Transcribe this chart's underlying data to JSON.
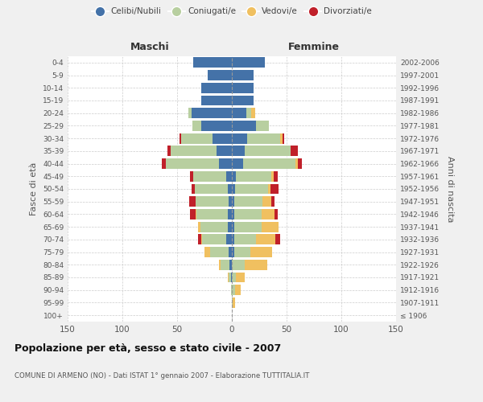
{
  "age_groups": [
    "100+",
    "95-99",
    "90-94",
    "85-89",
    "80-84",
    "75-79",
    "70-74",
    "65-69",
    "60-64",
    "55-59",
    "50-54",
    "45-49",
    "40-44",
    "35-39",
    "30-34",
    "25-29",
    "20-24",
    "15-19",
    "10-14",
    "5-9",
    "0-4"
  ],
  "birth_years": [
    "≤ 1906",
    "1907-1911",
    "1912-1916",
    "1917-1921",
    "1922-1926",
    "1927-1931",
    "1932-1936",
    "1937-1941",
    "1942-1946",
    "1947-1951",
    "1952-1956",
    "1957-1961",
    "1962-1966",
    "1967-1971",
    "1972-1976",
    "1977-1981",
    "1982-1986",
    "1987-1991",
    "1992-1996",
    "1997-2001",
    "2002-2006"
  ],
  "maschi": {
    "celibi": [
      0,
      0,
      0,
      1,
      2,
      3,
      5,
      4,
      4,
      3,
      4,
      5,
      12,
      14,
      18,
      28,
      37,
      28,
      28,
      22,
      35
    ],
    "coniugati": [
      0,
      0,
      1,
      2,
      8,
      17,
      22,
      25,
      28,
      30,
      30,
      30,
      48,
      42,
      28,
      8,
      3,
      0,
      0,
      0,
      0
    ],
    "vedovi": [
      0,
      0,
      0,
      1,
      2,
      5,
      1,
      2,
      1,
      0,
      0,
      0,
      0,
      0,
      0,
      0,
      0,
      0,
      0,
      0,
      0
    ],
    "divorziati": [
      0,
      0,
      0,
      0,
      0,
      0,
      3,
      0,
      5,
      6,
      3,
      3,
      4,
      3,
      2,
      0,
      0,
      0,
      0,
      0,
      0
    ]
  },
  "femmine": {
    "nubili": [
      0,
      0,
      0,
      0,
      0,
      2,
      2,
      2,
      2,
      2,
      3,
      4,
      10,
      12,
      14,
      22,
      13,
      20,
      20,
      20,
      30
    ],
    "coniugate": [
      0,
      1,
      3,
      4,
      12,
      15,
      20,
      25,
      25,
      26,
      30,
      32,
      48,
      42,
      30,
      12,
      5,
      0,
      0,
      0,
      0
    ],
    "vedove": [
      0,
      2,
      5,
      8,
      20,
      20,
      18,
      16,
      12,
      8,
      2,
      2,
      2,
      0,
      2,
      0,
      3,
      0,
      0,
      0,
      0
    ],
    "divorziate": [
      0,
      0,
      0,
      0,
      0,
      0,
      4,
      0,
      3,
      3,
      8,
      4,
      4,
      6,
      2,
      0,
      0,
      0,
      0,
      0,
      0
    ]
  },
  "colors": {
    "celibi": "#4472a8",
    "coniugati": "#b8cfa0",
    "vedovi": "#f0c060",
    "divorziati": "#c0202a"
  },
  "xlim": 150,
  "title": "Popolazione per età, sesso e stato civile - 2007",
  "subtitle": "COMUNE DI ARMENO (NO) - Dati ISTAT 1° gennaio 2007 - Elaborazione TUTTITALIA.IT",
  "ylabel_left": "Fasce di età",
  "ylabel_right": "Anni di nascita",
  "xlabel_maschi": "Maschi",
  "xlabel_femmine": "Femmine",
  "bg_color": "#f0f0f0",
  "plot_bg": "#ffffff"
}
